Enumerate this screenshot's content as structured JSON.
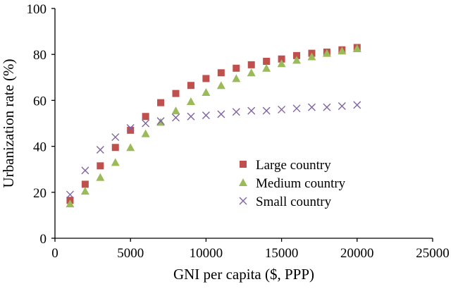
{
  "chart_data": {
    "type": "scatter",
    "title": "",
    "xlabel": "GNI per capita ($, PPP)",
    "ylabel": "Urbanization rate (%)",
    "xlim": [
      0,
      25000
    ],
    "ylim": [
      0,
      100
    ],
    "xticks": [
      0,
      5000,
      10000,
      15000,
      20000,
      25000
    ],
    "yticks": [
      0,
      20,
      40,
      60,
      80,
      100
    ],
    "xtick_labels": [
      "0",
      "5000",
      "10000",
      "15000",
      "20000",
      "25000"
    ],
    "ytick_labels": [
      "0",
      "20",
      "40",
      "60",
      "80",
      "100"
    ],
    "grid": false,
    "legend_position": "center-right",
    "series": [
      {
        "name": "Large country",
        "marker": "square",
        "color": "#c0504d",
        "x": [
          1000,
          2000,
          3000,
          4000,
          5000,
          6000,
          7000,
          8000,
          9000,
          10000,
          11000,
          12000,
          13000,
          14000,
          15000,
          16000,
          17000,
          18000,
          19000,
          20000
        ],
        "y": [
          16.5,
          23.5,
          31.5,
          39.5,
          47,
          53,
          59,
          63,
          66.5,
          69.5,
          72,
          74,
          75.5,
          77,
          78,
          79.5,
          80.5,
          81,
          82,
          83
        ]
      },
      {
        "name": "Medium country",
        "marker": "triangle",
        "color": "#9bbb59",
        "x": [
          1000,
          2000,
          3000,
          4000,
          5000,
          6000,
          7000,
          8000,
          9000,
          10000,
          11000,
          12000,
          13000,
          14000,
          15000,
          16000,
          17000,
          18000,
          19000,
          20000
        ],
        "y": [
          15,
          20.5,
          26.5,
          33,
          39.5,
          45.5,
          50.5,
          55.5,
          59.5,
          63.5,
          66.5,
          69.5,
          72,
          74,
          76,
          77.5,
          79,
          80.5,
          81.5,
          82.5
        ]
      },
      {
        "name": "Small country",
        "marker": "x",
        "color": "#8064a2",
        "x": [
          1000,
          2000,
          3000,
          4000,
          5000,
          6000,
          7000,
          8000,
          9000,
          10000,
          11000,
          12000,
          13000,
          14000,
          15000,
          16000,
          17000,
          18000,
          19000,
          20000
        ],
        "y": [
          19,
          29.5,
          38.5,
          44,
          48,
          50,
          51,
          52.5,
          53,
          53.5,
          54,
          55,
          55.5,
          55.5,
          56,
          56.5,
          57,
          57,
          57.5,
          58
        ]
      }
    ]
  }
}
